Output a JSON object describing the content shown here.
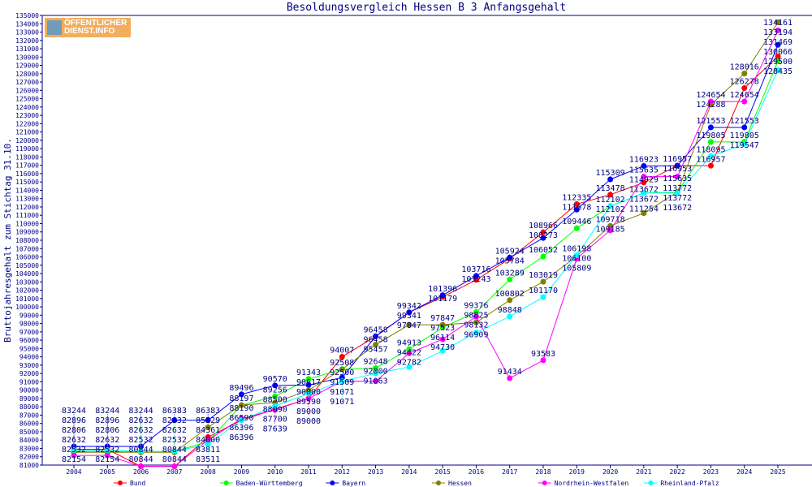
{
  "chart_data": {
    "type": "line",
    "title": "Besoldungsvergleich Hessen B 3 Anfangsgehalt",
    "ylabel": "Bruttojahresgehalt zum Stichtag 31.10.",
    "xlabel": "",
    "ylim": [
      81000,
      135000
    ],
    "ytick_step": 1000,
    "grid": false,
    "legend_position": "bottom",
    "x": [
      2004,
      2005,
      2006,
      2007,
      2008,
      2009,
      2010,
      2011,
      2012,
      2013,
      2014,
      2015,
      2016,
      2017,
      2018,
      2019,
      2020,
      2021,
      2022,
      2023,
      2024,
      2025
    ],
    "series": [
      {
        "name": "Bund",
        "color": "#ff0000",
        "values": [
          82896,
          82896,
          80844,
          80844,
          84361,
          86396,
          87700,
          89000,
          94007,
          96458,
          99341,
          101179,
          103243,
          105784,
          108966,
          112335,
          113478,
          114929,
          116957,
          116957,
          126278,
          130066
        ]
      },
      {
        "name": "Baden-Württemberg",
        "color": "#00ff00",
        "values": [
          82632,
          82632,
          82632,
          82632,
          83811,
          88190,
          89256,
          91343,
          92508,
          92648,
          94913,
          97523,
          99376,
          103289,
          106052,
          109446,
          112102,
          113672,
          113772,
          119805,
          119805,
          129500
        ]
      },
      {
        "name": "Bayern",
        "color": "#0000ff",
        "values": [
          83244,
          83244,
          83244,
          86383,
          86383,
          89496,
          90570,
          90617,
          91509,
          96458,
          99342,
          101396,
          103716,
          105924,
          108273,
          111678,
          115309,
          116923,
          116953,
          121553,
          121553,
          131469
        ]
      },
      {
        "name": "Hessen",
        "color": "#808000",
        "values": [
          82532,
          82532,
          82532,
          82532,
          85529,
          88197,
          88500,
          90000,
          92500,
          95457,
          97847,
          97847,
          98132,
          100802,
          103019,
          106100,
          109718,
          111254,
          113772,
          124288,
          128016,
          134161
        ]
      },
      {
        "name": "Nordrhein-Westfalen",
        "color": "#ff00ff",
        "values": [
          82154,
          82154,
          80844,
          80844,
          84000,
          86590,
          87639,
          89000,
          91071,
          91063,
          94422,
          96114,
          98825,
          91434,
          93583,
          105809,
          109185,
          115635,
          115635,
          124654,
          124654,
          133194
        ]
      },
      {
        "name": "Rheinland-Pfalz",
        "color": "#00ffff",
        "values": [
          82806,
          82806,
          82632,
          82632,
          83511,
          86396,
          88090,
          89590,
          91071,
          92000,
          92782,
          94730,
          96909,
          98848,
          101170,
          106198,
          112102,
          113672,
          113672,
          118095,
          119547,
          128435
        ]
      }
    ]
  },
  "logo": {
    "line1": "ÖFFENTLICHER",
    "line2": "DIENST.INFO"
  }
}
